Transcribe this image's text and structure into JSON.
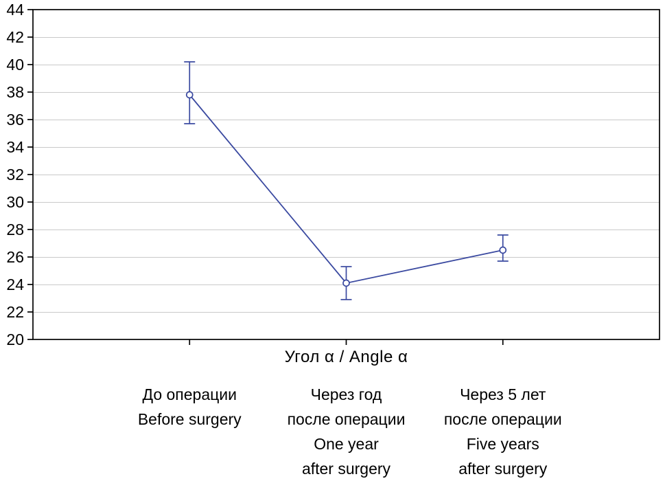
{
  "chart_data": {
    "type": "line",
    "title": "",
    "xlabel": "Угол α / Angle α",
    "ylabel": "",
    "ylim": [
      20,
      44
    ],
    "yticks": [
      20,
      22,
      24,
      26,
      28,
      30,
      32,
      34,
      36,
      38,
      40,
      42,
      44
    ],
    "grid": "horizontal",
    "legend_position": "none",
    "line_color": "#3a49a0",
    "grid_color": "#c9c9c9",
    "frame_color": "#000000",
    "marker": "open-circle",
    "categories": [
      {
        "lines": [
          "До операции",
          "Before surgery"
        ]
      },
      {
        "lines": [
          "Через год",
          "после операции",
          "One year",
          "after surgery"
        ]
      },
      {
        "lines": [
          "Через 5 лет",
          "после операции",
          "Five years",
          "after surgery"
        ]
      }
    ],
    "series": [
      {
        "name": "Угол α / Angle α",
        "values": [
          37.8,
          24.1,
          26.5
        ],
        "error_upper": [
          40.2,
          25.3,
          27.6
        ],
        "error_lower": [
          35.7,
          22.9,
          25.7
        ]
      }
    ]
  }
}
